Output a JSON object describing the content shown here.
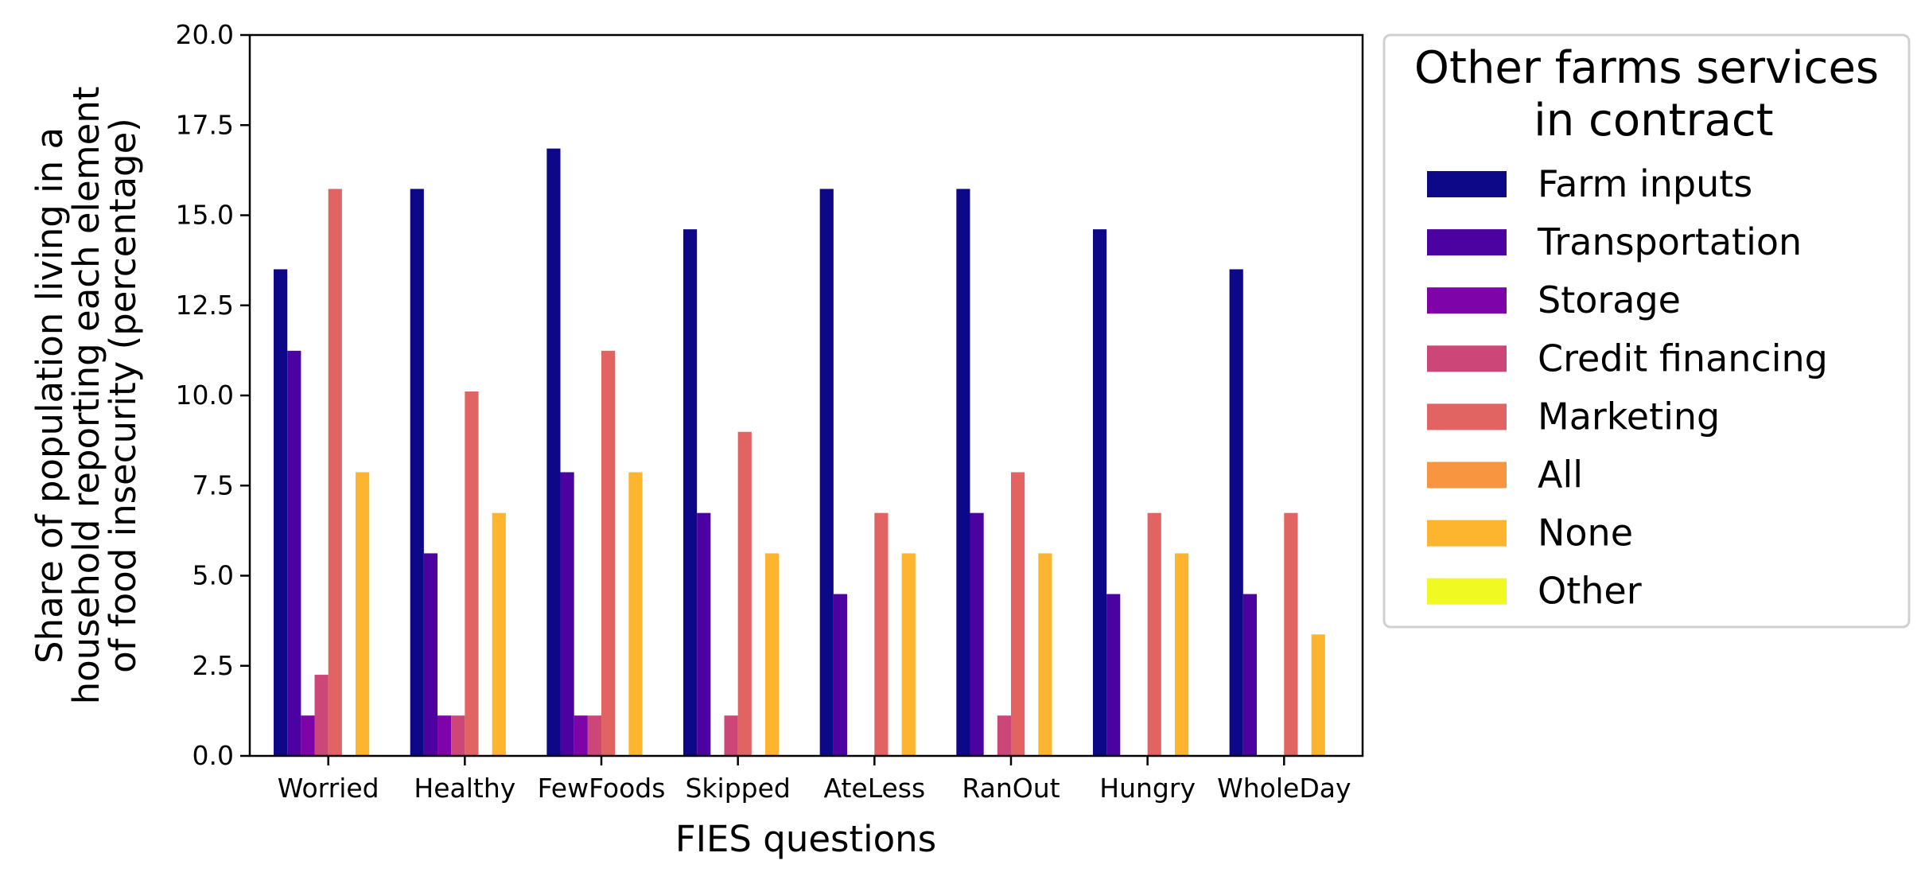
{
  "chart_data": {
    "type": "bar",
    "title": "",
    "xlabel": "FIES questions",
    "ylabel": [
      "Share of population living in a",
      "household reporting each element",
      "of food insecurity (percentage)"
    ],
    "ylim": [
      0,
      20
    ],
    "yticks": [
      "0.0",
      "2.5",
      "5.0",
      "7.5",
      "10.0",
      "12.5",
      "15.0",
      "17.5",
      "20.0"
    ],
    "grid": false,
    "legend": {
      "title": [
        "Other farms services",
        " in contract"
      ],
      "placement": "outside-right"
    },
    "categories": [
      "Worried",
      "Healthy",
      "FewFoods",
      "Skipped",
      "AteLess",
      "RanOut",
      "Hungry",
      "WholeDay"
    ],
    "series": [
      {
        "name": "Farm inputs",
        "color": "#0d0887",
        "values": [
          13.5,
          15.73,
          16.85,
          14.61,
          15.73,
          15.73,
          14.61,
          13.5
        ]
      },
      {
        "name": "Transportation",
        "color": "#4c02a1",
        "values": [
          11.24,
          5.62,
          7.87,
          6.74,
          4.49,
          6.74,
          4.49,
          4.49
        ]
      },
      {
        "name": "Storage",
        "color": "#7e03a8",
        "values": [
          1.12,
          1.12,
          1.12,
          0,
          0,
          0,
          0,
          0
        ]
      },
      {
        "name": "Credit financing",
        "color": "#cc4778",
        "values": [
          2.25,
          1.12,
          1.12,
          1.12,
          0,
          1.12,
          0,
          0
        ]
      },
      {
        "name": "Marketing",
        "color": "#e16462",
        "values": [
          15.73,
          10.11,
          11.24,
          8.99,
          6.74,
          7.87,
          6.74,
          6.74
        ]
      },
      {
        "name": "All",
        "color": "#f89540",
        "values": [
          0,
          0,
          0,
          0,
          0,
          0,
          0,
          0
        ]
      },
      {
        "name": "None",
        "color": "#fdb42f",
        "values": [
          7.87,
          6.74,
          7.87,
          5.62,
          5.62,
          5.62,
          5.62,
          3.37
        ]
      },
      {
        "name": "Other",
        "color": "#f0f921",
        "values": [
          0,
          0,
          0,
          0,
          0,
          0,
          0,
          0
        ]
      }
    ]
  }
}
